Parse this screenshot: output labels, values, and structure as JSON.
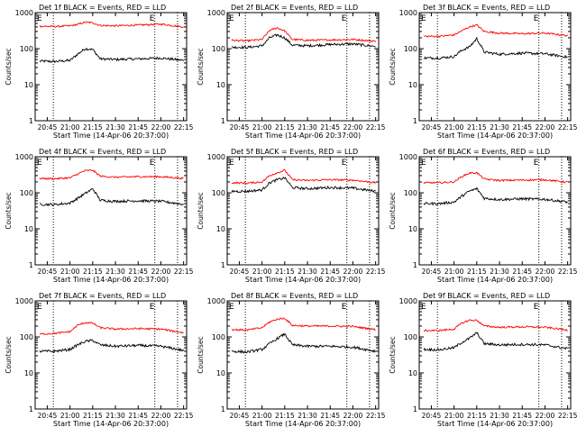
{
  "colors": {
    "events": "#000000",
    "lld": "#ff0000",
    "background": "#ffffff",
    "axes": "#000000"
  },
  "shared": {
    "xlabel": "Start Time (14-Apr-06 20:37:00)",
    "ylabel": "Counts/sec",
    "x_ticks": [
      "20:45",
      "21:00",
      "21:15",
      "21:30",
      "21:45",
      "22:00",
      "22:15"
    ],
    "y_ticks": [
      "1",
      "10",
      "100",
      "1000"
    ],
    "y_scale": "log",
    "ylim": [
      1,
      1000
    ],
    "xlim": [
      "20:37",
      "22:17"
    ],
    "vlines": [
      "20:49",
      "21:56",
      "22:11"
    ],
    "marker_label": "E"
  },
  "chart_data": [
    {
      "type": "line",
      "title": "Det 1f BLACK = Events, RED = LLD",
      "x": [
        "20:40",
        "20:50",
        "21:00",
        "21:05",
        "21:10",
        "21:15",
        "21:20",
        "21:30",
        "21:45",
        "22:00",
        "22:15"
      ],
      "series": [
        {
          "name": "Events",
          "values": [
            45,
            44,
            47,
            70,
            100,
            95,
            52,
            50,
            52,
            55,
            47
          ]
        },
        {
          "name": "LLD",
          "values": [
            420,
            410,
            430,
            470,
            540,
            520,
            440,
            430,
            450,
            480,
            400
          ]
        }
      ]
    },
    {
      "type": "line",
      "title": "Det 2f BLACK = Events, RED = LLD",
      "x": [
        "20:40",
        "20:50",
        "21:00",
        "21:05",
        "21:10",
        "21:15",
        "21:20",
        "21:30",
        "21:45",
        "22:00",
        "22:15"
      ],
      "series": [
        {
          "name": "Events",
          "values": [
            110,
            108,
            120,
            200,
            240,
            200,
            125,
            120,
            130,
            135,
            115
          ]
        },
        {
          "name": "LLD",
          "values": [
            170,
            165,
            180,
            320,
            380,
            310,
            180,
            170,
            175,
            180,
            160
          ]
        }
      ]
    },
    {
      "type": "line",
      "title": "Det 3f BLACK = Events, RED = LLD",
      "x": [
        "20:40",
        "20:50",
        "21:00",
        "21:05",
        "21:10",
        "21:15",
        "21:20",
        "21:30",
        "21:45",
        "22:00",
        "22:15"
      ],
      "series": [
        {
          "name": "Events",
          "values": [
            55,
            55,
            60,
            90,
            110,
            190,
            80,
            70,
            75,
            72,
            58
          ]
        },
        {
          "name": "LLD",
          "values": [
            220,
            220,
            240,
            310,
            400,
            450,
            300,
            270,
            260,
            270,
            230
          ]
        }
      ]
    },
    {
      "type": "line",
      "title": "Det 4f BLACK = Events, RED = LLD",
      "x": [
        "20:40",
        "20:50",
        "21:00",
        "21:05",
        "21:10",
        "21:15",
        "21:20",
        "21:30",
        "21:45",
        "22:00",
        "22:15"
      ],
      "series": [
        {
          "name": "Events",
          "values": [
            48,
            47,
            52,
            70,
            95,
            130,
            62,
            58,
            60,
            58,
            48
          ]
        },
        {
          "name": "LLD",
          "values": [
            250,
            245,
            260,
            330,
            410,
            420,
            290,
            270,
            280,
            280,
            250
          ]
        }
      ]
    },
    {
      "type": "line",
      "title": "Det 5f BLACK = Events, RED = LLD",
      "x": [
        "20:40",
        "20:50",
        "21:00",
        "21:05",
        "21:10",
        "21:15",
        "21:20",
        "21:30",
        "21:45",
        "22:00",
        "22:15"
      ],
      "series": [
        {
          "name": "Events",
          "values": [
            110,
            110,
            120,
            190,
            230,
            260,
            140,
            130,
            140,
            135,
            110
          ]
        },
        {
          "name": "LLD",
          "values": [
            190,
            185,
            200,
            300,
            360,
            420,
            230,
            220,
            230,
            225,
            190
          ]
        }
      ]
    },
    {
      "type": "line",
      "title": "Det 6f BLACK = Events, RED = LLD",
      "x": [
        "20:40",
        "20:50",
        "21:00",
        "21:05",
        "21:10",
        "21:15",
        "21:20",
        "21:30",
        "21:45",
        "22:00",
        "22:15"
      ],
      "series": [
        {
          "name": "Events",
          "values": [
            50,
            50,
            55,
            80,
            110,
            130,
            70,
            65,
            68,
            66,
            55
          ]
        },
        {
          "name": "LLD",
          "values": [
            190,
            190,
            200,
            280,
            350,
            360,
            240,
            220,
            225,
            230,
            195
          ]
        }
      ]
    },
    {
      "type": "line",
      "title": "Det 7f BLACK = Events, RED = LLD",
      "x": [
        "20:40",
        "20:50",
        "21:00",
        "21:05",
        "21:10",
        "21:15",
        "21:20",
        "21:30",
        "21:45",
        "22:00",
        "22:15"
      ],
      "series": [
        {
          "name": "Events",
          "values": [
            40,
            40,
            45,
            60,
            75,
            80,
            60,
            55,
            58,
            55,
            42
          ]
        },
        {
          "name": "LLD",
          "values": [
            120,
            125,
            140,
            210,
            250,
            240,
            180,
            165,
            170,
            165,
            130
          ]
        }
      ]
    },
    {
      "type": "line",
      "title": "Det 8f BLACK = Events, RED = LLD",
      "x": [
        "20:40",
        "20:50",
        "21:00",
        "21:05",
        "21:10",
        "21:15",
        "21:20",
        "21:30",
        "21:45",
        "22:00",
        "22:15"
      ],
      "series": [
        {
          "name": "Events",
          "values": [
            40,
            38,
            45,
            65,
            90,
            120,
            60,
            55,
            55,
            52,
            40
          ]
        },
        {
          "name": "LLD",
          "values": [
            160,
            155,
            180,
            260,
            310,
            330,
            210,
            200,
            200,
            195,
            160
          ]
        }
      ]
    },
    {
      "type": "line",
      "title": "Det 9f BLACK = Events, RED = LLD",
      "x": [
        "20:40",
        "20:50",
        "21:00",
        "21:05",
        "21:10",
        "21:15",
        "21:20",
        "21:30",
        "21:45",
        "22:00",
        "22:15"
      ],
      "series": [
        {
          "name": "Events",
          "values": [
            45,
            44,
            50,
            70,
            90,
            130,
            65,
            60,
            62,
            60,
            47
          ]
        },
        {
          "name": "LLD",
          "values": [
            150,
            150,
            165,
            240,
            290,
            290,
            200,
            185,
            190,
            185,
            155
          ]
        }
      ]
    }
  ]
}
